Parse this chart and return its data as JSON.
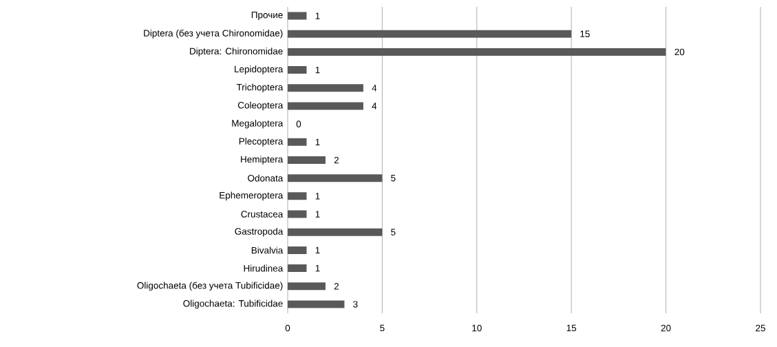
{
  "chart_data": {
    "type": "bar",
    "orientation": "horizontal",
    "categories": [
      "Прочие",
      "Diptera (без учета Chironomidae)",
      "Diptera: Chironomidae",
      "Lepidoptera",
      "Trichoptera",
      "Coleoptera",
      "Megaloptera",
      "Plecoptera",
      "Hemiptera",
      "Odonata",
      "Ephemeroptera",
      "Crustacea",
      "Gastropoda",
      "Bivalvia",
      "Hirudinea",
      "Oligochaeta (без учета Tubificidae)",
      "Oligochaeta: Tubificidae"
    ],
    "values": [
      1,
      15,
      20,
      1,
      4,
      4,
      0,
      1,
      2,
      5,
      1,
      1,
      5,
      1,
      1,
      2,
      3
    ],
    "color": "#595959",
    "xlim": [
      0,
      25
    ],
    "xticks": [
      0,
      5,
      10,
      15,
      20,
      25
    ],
    "grid": "x",
    "data_labels": true
  }
}
